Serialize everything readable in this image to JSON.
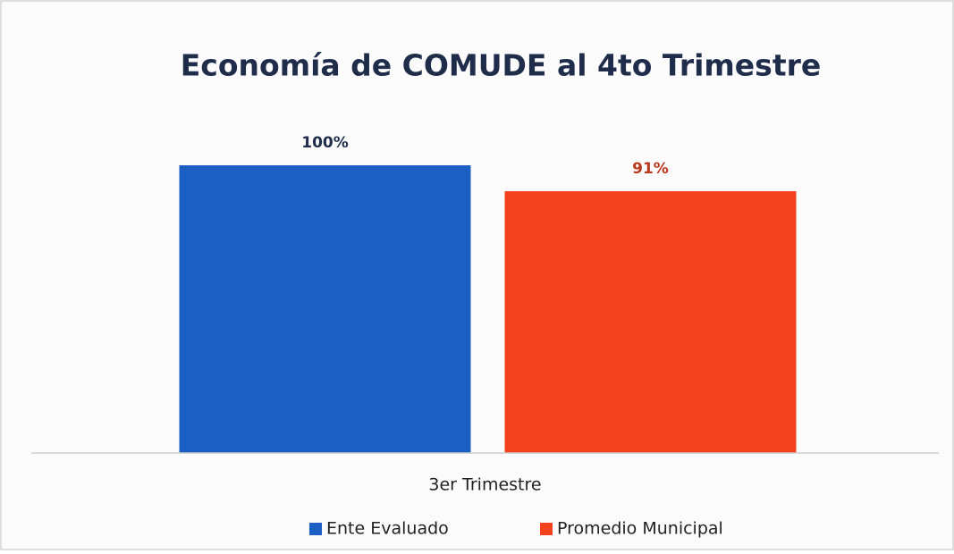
{
  "chart_data": {
    "type": "bar",
    "title": "Economía de COMUDE al 4to Trimestre",
    "categories": [
      "3er Trimestre"
    ],
    "series": [
      {
        "name": "Ente Evaluado",
        "color": "#1b5fc4",
        "label_color": "#1f2d4a",
        "values": [
          100
        ],
        "value_labels": [
          "100%"
        ]
      },
      {
        "name": "Promedio Municipal",
        "color": "#f2411d",
        "label_color": "#b8391c",
        "values": [
          91
        ],
        "value_labels": [
          "91%"
        ]
      }
    ],
    "ylim": [
      0,
      100
    ],
    "legend": "bottom"
  }
}
